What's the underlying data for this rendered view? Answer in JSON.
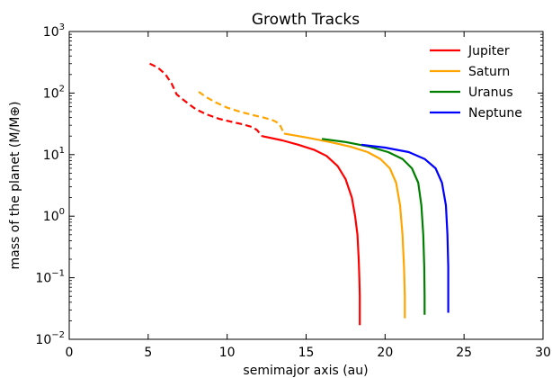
{
  "chart_data": {
    "type": "line",
    "title": "Growth Tracks",
    "xlabel": "semimajor axis (au)",
    "ylabel": "mass of the planet (M/M⊕)",
    "xlim": [
      0,
      30
    ],
    "ylim": [
      0.01,
      1000
    ],
    "yscale": "log",
    "grid": false,
    "legend_position": "top-right",
    "x_ticks": [
      0,
      5,
      10,
      15,
      20,
      25,
      30
    ],
    "y_ticks": [
      0.01,
      0.1,
      1,
      10,
      100,
      1000
    ],
    "y_tick_labels": [
      {
        "base": "10",
        "exp": "−2"
      },
      {
        "base": "10",
        "exp": "−1"
      },
      {
        "base": "10",
        "exp": "0"
      },
      {
        "base": "10",
        "exp": "1"
      },
      {
        "base": "10",
        "exp": "2"
      },
      {
        "base": "10",
        "exp": "3"
      }
    ],
    "series": [
      {
        "name": "Jupiter",
        "color": "#ff0000",
        "dashed": [
          [
            5.1,
            300
          ],
          [
            5.6,
            260
          ],
          [
            6.1,
            200
          ],
          [
            6.5,
            140
          ],
          [
            6.8,
            95
          ],
          [
            7.3,
            75
          ],
          [
            8.0,
            55
          ],
          [
            8.7,
            45
          ],
          [
            9.5,
            38
          ],
          [
            10.3,
            34
          ],
          [
            11.0,
            31
          ],
          [
            11.6,
            28
          ],
          [
            11.9,
            25
          ],
          [
            12.2,
            20
          ]
        ],
        "solid": [
          [
            12.2,
            20
          ],
          [
            13.5,
            17
          ],
          [
            14.5,
            14.5
          ],
          [
            15.5,
            12
          ],
          [
            16.3,
            9.5
          ],
          [
            17.0,
            6.5
          ],
          [
            17.5,
            4
          ],
          [
            17.9,
            2
          ],
          [
            18.1,
            1
          ],
          [
            18.25,
            0.5
          ],
          [
            18.33,
            0.2
          ],
          [
            18.37,
            0.1
          ],
          [
            18.4,
            0.05
          ],
          [
            18.4,
            0.017
          ]
        ]
      },
      {
        "name": "Saturn",
        "color": "#ffa500",
        "dashed": [
          [
            8.2,
            105
          ],
          [
            8.7,
            85
          ],
          [
            9.3,
            70
          ],
          [
            10.0,
            58
          ],
          [
            10.8,
            50
          ],
          [
            11.6,
            44
          ],
          [
            12.3,
            40
          ],
          [
            12.9,
            36
          ],
          [
            13.3,
            32
          ],
          [
            13.6,
            22
          ]
        ],
        "solid": [
          [
            13.6,
            22
          ],
          [
            15.0,
            19
          ],
          [
            16.5,
            16
          ],
          [
            17.8,
            13.5
          ],
          [
            18.9,
            11
          ],
          [
            19.7,
            8.5
          ],
          [
            20.3,
            6
          ],
          [
            20.7,
            3.5
          ],
          [
            20.95,
            1.5
          ],
          [
            21.1,
            0.5
          ],
          [
            21.2,
            0.15
          ],
          [
            21.25,
            0.05
          ],
          [
            21.25,
            0.022
          ]
        ]
      },
      {
        "name": "Uranus",
        "color": "#008000",
        "dashed": [],
        "solid": [
          [
            16.0,
            18
          ],
          [
            17.5,
            16
          ],
          [
            19.0,
            13.5
          ],
          [
            20.2,
            11
          ],
          [
            21.1,
            8.5
          ],
          [
            21.7,
            6
          ],
          [
            22.1,
            3.5
          ],
          [
            22.3,
            1.5
          ],
          [
            22.42,
            0.5
          ],
          [
            22.48,
            0.15
          ],
          [
            22.5,
            0.05
          ],
          [
            22.5,
            0.025
          ]
        ]
      },
      {
        "name": "Neptune",
        "color": "#0000ff",
        "dashed": [],
        "solid": [
          [
            18.5,
            14.5
          ],
          [
            20.0,
            13
          ],
          [
            21.5,
            11
          ],
          [
            22.5,
            8.5
          ],
          [
            23.2,
            6
          ],
          [
            23.6,
            3.5
          ],
          [
            23.85,
            1.5
          ],
          [
            23.95,
            0.5
          ],
          [
            24.0,
            0.15
          ],
          [
            24.0,
            0.05
          ],
          [
            24.0,
            0.027
          ]
        ]
      }
    ]
  }
}
